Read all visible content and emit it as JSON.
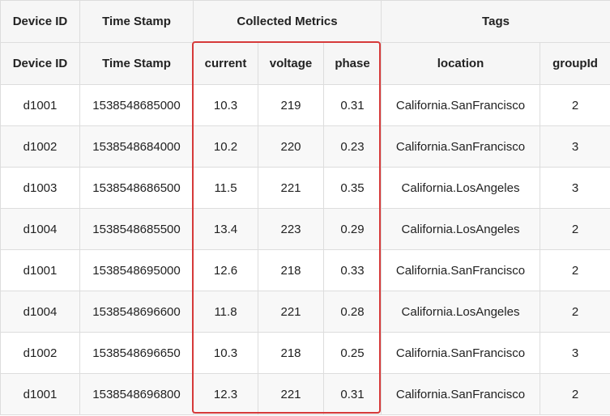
{
  "groups": {
    "device_id": "Device ID",
    "time_stamp": "Time Stamp",
    "collected_metrics": "Collected Metrics",
    "tags": "Tags"
  },
  "headers": {
    "device_id": "Device ID",
    "time_stamp": "Time Stamp",
    "current": "current",
    "voltage": "voltage",
    "phase": "phase",
    "location": "location",
    "group_id": "groupId"
  },
  "highlight_color": "#d63a3a",
  "rows": [
    {
      "device_id": "d1001",
      "time_stamp": "1538548685000",
      "current": "10.3",
      "voltage": "219",
      "phase": "0.31",
      "location": "California.SanFrancisco",
      "group_id": "2"
    },
    {
      "device_id": "d1002",
      "time_stamp": "1538548684000",
      "current": "10.2",
      "voltage": "220",
      "phase": "0.23",
      "location": "California.SanFrancisco",
      "group_id": "3"
    },
    {
      "device_id": "d1003",
      "time_stamp": "1538548686500",
      "current": "11.5",
      "voltage": "221",
      "phase": "0.35",
      "location": "California.LosAngeles",
      "group_id": "3"
    },
    {
      "device_id": "d1004",
      "time_stamp": "1538548685500",
      "current": "13.4",
      "voltage": "223",
      "phase": "0.29",
      "location": "California.LosAngeles",
      "group_id": "2"
    },
    {
      "device_id": "d1001",
      "time_stamp": "1538548695000",
      "current": "12.6",
      "voltage": "218",
      "phase": "0.33",
      "location": "California.SanFrancisco",
      "group_id": "2"
    },
    {
      "device_id": "d1004",
      "time_stamp": "1538548696600",
      "current": "11.8",
      "voltage": "221",
      "phase": "0.28",
      "location": "California.LosAngeles",
      "group_id": "2"
    },
    {
      "device_id": "d1002",
      "time_stamp": "1538548696650",
      "current": "10.3",
      "voltage": "218",
      "phase": "0.25",
      "location": "California.SanFrancisco",
      "group_id": "3"
    },
    {
      "device_id": "d1001",
      "time_stamp": "1538548696800",
      "current": "12.3",
      "voltage": "221",
      "phase": "0.31",
      "location": "California.SanFrancisco",
      "group_id": "2"
    }
  ]
}
